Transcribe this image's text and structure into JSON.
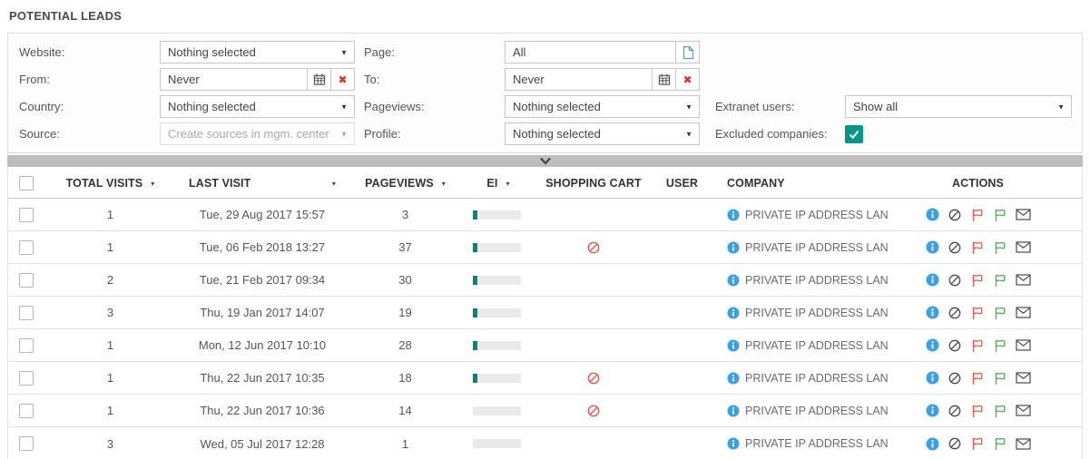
{
  "title": "POTENTIAL LEADS",
  "icons": {
    "dropdown_arrow": "▼",
    "sort_arrow": "▾",
    "clear_x": "✖"
  },
  "colors": {
    "teal": "#009688",
    "info_blue": "#3aa0e8",
    "alert_red": "#e8413c",
    "flag_red": "#ef5350",
    "flag_green": "#4caf50",
    "bar_gray": "#bdbdbd"
  },
  "filters": {
    "website": {
      "label": "Website:",
      "value": "Nothing selected"
    },
    "page": {
      "label": "Page:",
      "value": "All"
    },
    "from": {
      "label": "From:",
      "value": "Never"
    },
    "to": {
      "label": "To:",
      "value": "Never"
    },
    "country": {
      "label": "Country:",
      "value": "Nothing selected"
    },
    "pageviews": {
      "label": "Pageviews:",
      "value": "Nothing selected"
    },
    "extranet_users": {
      "label": "Extranet users:",
      "value": "Show all"
    },
    "source": {
      "label": "Source:",
      "placeholder": "Create sources in mgm. center"
    },
    "profile": {
      "label": "Profile:",
      "value": "Nothing selected"
    },
    "excluded_companies": {
      "label": "Excluded companies:",
      "checked": true
    }
  },
  "table": {
    "headers": {
      "total_visits": "TOTAL VISITS",
      "last_visit": "LAST VISIT",
      "pageviews": "PAGEVIEWS",
      "ei": "EI",
      "shopping_cart": "SHOPPING CART",
      "user": "USER",
      "company": "COMPANY",
      "actions": "ACTIONS"
    },
    "rows": [
      {
        "total_visits": "1",
        "last_visit": "Tue, 29 Aug 2017 15:57",
        "pageviews": "3",
        "ei_percent": 9,
        "shopping_cart_blocked": false,
        "user": "",
        "company": "PRIVATE IP ADDRESS LAN"
      },
      {
        "total_visits": "1",
        "last_visit": "Tue, 06 Feb 2018 13:27",
        "pageviews": "37",
        "ei_percent": 9,
        "shopping_cart_blocked": true,
        "user": "",
        "company": "PRIVATE IP ADDRESS LAN"
      },
      {
        "total_visits": "2",
        "last_visit": "Tue, 21 Feb 2017 09:34",
        "pageviews": "30",
        "ei_percent": 9,
        "shopping_cart_blocked": false,
        "user": "",
        "company": "PRIVATE IP ADDRESS LAN"
      },
      {
        "total_visits": "3",
        "last_visit": "Thu, 19 Jan 2017 14:07",
        "pageviews": "19",
        "ei_percent": 9,
        "shopping_cart_blocked": false,
        "user": "",
        "company": "PRIVATE IP ADDRESS LAN"
      },
      {
        "total_visits": "1",
        "last_visit": "Mon, 12 Jun 2017 10:10",
        "pageviews": "28",
        "ei_percent": 9,
        "shopping_cart_blocked": false,
        "user": "",
        "company": "PRIVATE IP ADDRESS LAN"
      },
      {
        "total_visits": "1",
        "last_visit": "Thu, 22 Jun 2017 10:35",
        "pageviews": "18",
        "ei_percent": 9,
        "shopping_cart_blocked": true,
        "user": "",
        "company": "PRIVATE IP ADDRESS LAN"
      },
      {
        "total_visits": "1",
        "last_visit": "Thu, 22 Jun 2017 10:36",
        "pageviews": "14",
        "ei_percent": 0,
        "shopping_cart_blocked": true,
        "user": "",
        "company": "PRIVATE IP ADDRESS LAN"
      },
      {
        "total_visits": "3",
        "last_visit": "Wed, 05 Jul 2017 12:28",
        "pageviews": "1",
        "ei_percent": 0,
        "shopping_cart_blocked": false,
        "user": "",
        "company": "PRIVATE IP ADDRESS LAN"
      }
    ]
  }
}
